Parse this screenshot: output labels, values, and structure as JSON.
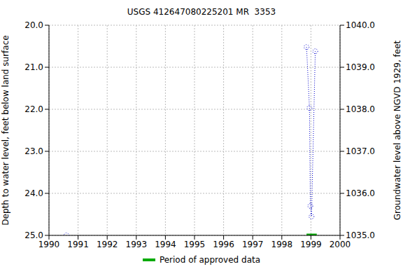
{
  "chart_data": {
    "type": "line",
    "title": "USGS 412647080225201 MR  3353",
    "ylabel": "Depth to water level, feet below land surface",
    "y2label": "Groundwater level above NGVD 1929, feet",
    "x": [
      1990.6,
      1994.7,
      1998.85,
      1998.95,
      1998.98,
      1999.02,
      1999.15
    ],
    "values": [
      25.0,
      null,
      20.52,
      21.97,
      24.3,
      24.55,
      20.62
    ],
    "color": "#0000cc",
    "marker": "circle",
    "line_style": "dotted",
    "xlim": [
      1990,
      2000
    ],
    "xticks": [
      1990,
      1991,
      1992,
      1993,
      1994,
      1995,
      1996,
      1997,
      1998,
      1999,
      2000
    ],
    "ylim": [
      25,
      20
    ],
    "yticks": [
      {
        "value": 20,
        "label": "20.0"
      },
      {
        "value": 21,
        "label": "21.0"
      },
      {
        "value": 22,
        "label": "22.0"
      },
      {
        "value": 23,
        "label": "23.0"
      },
      {
        "value": 24,
        "label": "24.0"
      },
      {
        "value": 25,
        "label": "25.0"
      }
    ],
    "y2lim": [
      1035,
      1040
    ],
    "y2ticks": [
      {
        "value": 1035,
        "label": "1035.0"
      },
      {
        "value": 1036,
        "label": "1036.0"
      },
      {
        "value": 1037,
        "label": "1037.0"
      },
      {
        "value": 1038,
        "label": "1038.0"
      },
      {
        "value": 1039,
        "label": "1039.0"
      },
      {
        "value": 1040,
        "label": "1040.0"
      }
    ],
    "grid": true,
    "legend": "bottom",
    "approved_periods": {
      "name": "Period of approved data",
      "color": "#00aa00",
      "ranges": [
        [
          1998.85,
          1999.2
        ]
      ]
    }
  }
}
